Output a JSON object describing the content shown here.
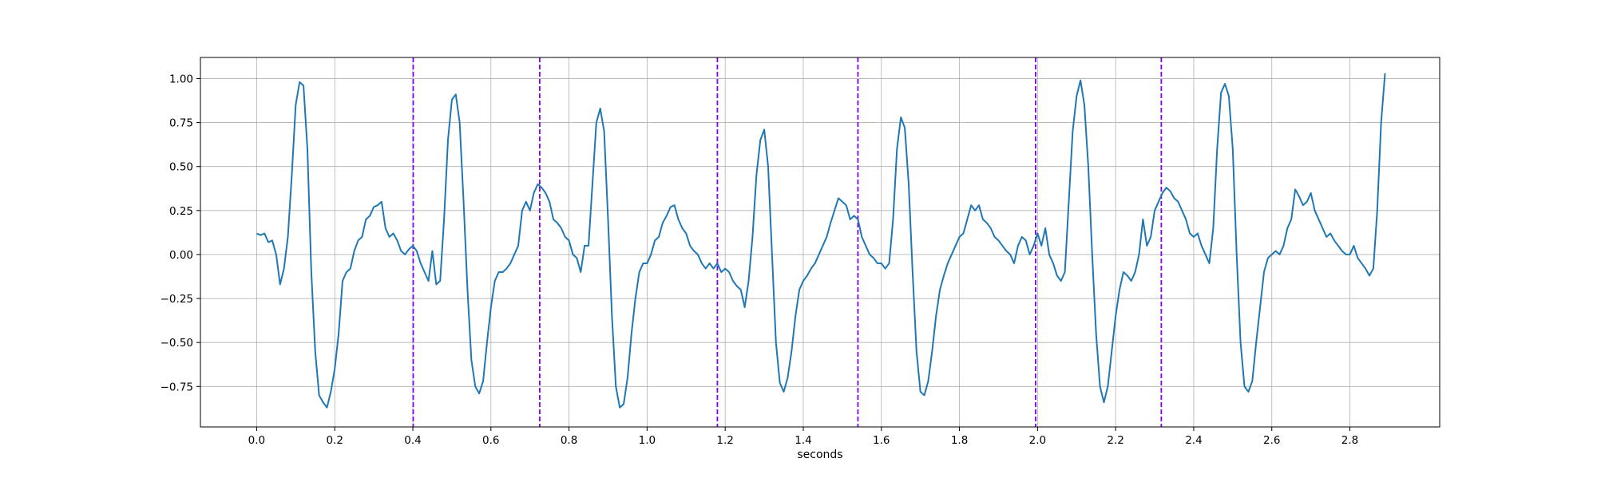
{
  "chart_data": {
    "type": "line",
    "title": "",
    "xlabel": "seconds",
    "ylabel": "",
    "xlim": [
      -0.144,
      3.03
    ],
    "ylim": [
      -0.98,
      1.12
    ],
    "grid": true,
    "x_ticks": [
      0.0,
      0.2,
      0.4,
      0.6,
      0.8,
      1.0,
      1.2,
      1.4,
      1.6,
      1.8,
      2.0,
      2.2,
      2.4,
      2.6,
      2.8
    ],
    "x_tick_labels": [
      "0.0",
      "0.2",
      "0.4",
      "0.6",
      "0.8",
      "1.0",
      "1.2",
      "1.4",
      "1.6",
      "1.8",
      "2.0",
      "2.2",
      "2.4",
      "2.6",
      "2.8"
    ],
    "y_ticks": [
      -0.75,
      -0.5,
      -0.25,
      0.0,
      0.25,
      0.5,
      0.75,
      1.0
    ],
    "y_tick_labels": [
      "−0.75",
      "−0.50",
      "−0.25",
      "0.00",
      "0.25",
      "0.50",
      "0.75",
      "1.00"
    ],
    "series": [
      {
        "color": "#1f77b4",
        "points": [
          [
            0.0,
            0.12
          ],
          [
            0.01,
            0.11
          ],
          [
            0.02,
            0.12
          ],
          [
            0.03,
            0.07
          ],
          [
            0.04,
            0.08
          ],
          [
            0.05,
            0.0
          ],
          [
            0.06,
            -0.17
          ],
          [
            0.07,
            -0.08
          ],
          [
            0.08,
            0.1
          ],
          [
            0.09,
            0.45
          ],
          [
            0.1,
            0.85
          ],
          [
            0.11,
            0.98
          ],
          [
            0.12,
            0.96
          ],
          [
            0.13,
            0.6
          ],
          [
            0.14,
            -0.1
          ],
          [
            0.15,
            -0.55
          ],
          [
            0.16,
            -0.8
          ],
          [
            0.17,
            -0.84
          ],
          [
            0.18,
            -0.87
          ],
          [
            0.19,
            -0.78
          ],
          [
            0.2,
            -0.65
          ],
          [
            0.21,
            -0.45
          ],
          [
            0.22,
            -0.15
          ],
          [
            0.23,
            -0.1
          ],
          [
            0.24,
            -0.08
          ],
          [
            0.25,
            0.02
          ],
          [
            0.26,
            0.08
          ],
          [
            0.27,
            0.1
          ],
          [
            0.28,
            0.2
          ],
          [
            0.29,
            0.22
          ],
          [
            0.3,
            0.27
          ],
          [
            0.31,
            0.28
          ],
          [
            0.32,
            0.3
          ],
          [
            0.33,
            0.15
          ],
          [
            0.34,
            0.1
          ],
          [
            0.35,
            0.12
          ],
          [
            0.36,
            0.08
          ],
          [
            0.37,
            0.02
          ],
          [
            0.38,
            0.0
          ],
          [
            0.39,
            0.03
          ],
          [
            0.4,
            0.05
          ],
          [
            0.41,
            0.02
          ],
          [
            0.42,
            -0.05
          ],
          [
            0.43,
            -0.1
          ],
          [
            0.44,
            -0.15
          ],
          [
            0.45,
            0.02
          ],
          [
            0.46,
            -0.17
          ],
          [
            0.47,
            -0.15
          ],
          [
            0.48,
            0.2
          ],
          [
            0.49,
            0.65
          ],
          [
            0.5,
            0.88
          ],
          [
            0.51,
            0.91
          ],
          [
            0.52,
            0.75
          ],
          [
            0.53,
            0.3
          ],
          [
            0.54,
            -0.2
          ],
          [
            0.55,
            -0.6
          ],
          [
            0.56,
            -0.75
          ],
          [
            0.57,
            -0.79
          ],
          [
            0.58,
            -0.72
          ],
          [
            0.59,
            -0.5
          ],
          [
            0.6,
            -0.3
          ],
          [
            0.61,
            -0.15
          ],
          [
            0.62,
            -0.1
          ],
          [
            0.63,
            -0.1
          ],
          [
            0.64,
            -0.08
          ],
          [
            0.65,
            -0.05
          ],
          [
            0.66,
            0.0
          ],
          [
            0.67,
            0.05
          ],
          [
            0.68,
            0.25
          ],
          [
            0.69,
            0.3
          ],
          [
            0.7,
            0.25
          ],
          [
            0.71,
            0.35
          ],
          [
            0.72,
            0.4
          ],
          [
            0.73,
            0.38
          ],
          [
            0.74,
            0.35
          ],
          [
            0.75,
            0.3
          ],
          [
            0.76,
            0.2
          ],
          [
            0.77,
            0.18
          ],
          [
            0.78,
            0.15
          ],
          [
            0.79,
            0.1
          ],
          [
            0.8,
            0.08
          ],
          [
            0.81,
            0.0
          ],
          [
            0.82,
            -0.02
          ],
          [
            0.83,
            -0.1
          ],
          [
            0.84,
            0.05
          ],
          [
            0.85,
            0.05
          ],
          [
            0.86,
            0.4
          ],
          [
            0.87,
            0.75
          ],
          [
            0.88,
            0.83
          ],
          [
            0.89,
            0.7
          ],
          [
            0.9,
            0.2
          ],
          [
            0.91,
            -0.35
          ],
          [
            0.92,
            -0.75
          ],
          [
            0.93,
            -0.87
          ],
          [
            0.94,
            -0.85
          ],
          [
            0.95,
            -0.7
          ],
          [
            0.96,
            -0.45
          ],
          [
            0.97,
            -0.25
          ],
          [
            0.98,
            -0.1
          ],
          [
            0.99,
            -0.05
          ],
          [
            1.0,
            -0.05
          ],
          [
            1.01,
            0.0
          ],
          [
            1.02,
            0.08
          ],
          [
            1.03,
            0.1
          ],
          [
            1.04,
            0.18
          ],
          [
            1.05,
            0.22
          ],
          [
            1.06,
            0.27
          ],
          [
            1.07,
            0.28
          ],
          [
            1.08,
            0.2
          ],
          [
            1.09,
            0.15
          ],
          [
            1.1,
            0.12
          ],
          [
            1.11,
            0.05
          ],
          [
            1.12,
            0.02
          ],
          [
            1.13,
            0.0
          ],
          [
            1.14,
            -0.05
          ],
          [
            1.15,
            -0.08
          ],
          [
            1.16,
            -0.05
          ],
          [
            1.17,
            -0.08
          ],
          [
            1.18,
            -0.05
          ],
          [
            1.19,
            -0.1
          ],
          [
            1.2,
            -0.08
          ],
          [
            1.21,
            -0.1
          ],
          [
            1.22,
            -0.15
          ],
          [
            1.23,
            -0.18
          ],
          [
            1.24,
            -0.2
          ],
          [
            1.25,
            -0.3
          ],
          [
            1.26,
            -0.15
          ],
          [
            1.27,
            0.1
          ],
          [
            1.28,
            0.45
          ],
          [
            1.29,
            0.65
          ],
          [
            1.3,
            0.71
          ],
          [
            1.31,
            0.5
          ],
          [
            1.32,
            0.0
          ],
          [
            1.33,
            -0.5
          ],
          [
            1.34,
            -0.73
          ],
          [
            1.35,
            -0.78
          ],
          [
            1.36,
            -0.7
          ],
          [
            1.37,
            -0.55
          ],
          [
            1.38,
            -0.35
          ],
          [
            1.39,
            -0.2
          ],
          [
            1.4,
            -0.15
          ],
          [
            1.41,
            -0.12
          ],
          [
            1.42,
            -0.08
          ],
          [
            1.43,
            -0.05
          ],
          [
            1.44,
            0.0
          ],
          [
            1.45,
            0.05
          ],
          [
            1.46,
            0.1
          ],
          [
            1.47,
            0.18
          ],
          [
            1.48,
            0.25
          ],
          [
            1.49,
            0.32
          ],
          [
            1.5,
            0.3
          ],
          [
            1.51,
            0.28
          ],
          [
            1.52,
            0.2
          ],
          [
            1.53,
            0.22
          ],
          [
            1.54,
            0.2
          ],
          [
            1.55,
            0.1
          ],
          [
            1.56,
            0.05
          ],
          [
            1.57,
            0.0
          ],
          [
            1.58,
            -0.02
          ],
          [
            1.59,
            -0.05
          ],
          [
            1.6,
            -0.05
          ],
          [
            1.61,
            -0.08
          ],
          [
            1.62,
            -0.05
          ],
          [
            1.63,
            0.2
          ],
          [
            1.64,
            0.6
          ],
          [
            1.65,
            0.78
          ],
          [
            1.66,
            0.72
          ],
          [
            1.67,
            0.4
          ],
          [
            1.68,
            -0.1
          ],
          [
            1.69,
            -0.55
          ],
          [
            1.7,
            -0.78
          ],
          [
            1.71,
            -0.8
          ],
          [
            1.72,
            -0.72
          ],
          [
            1.73,
            -0.55
          ],
          [
            1.74,
            -0.35
          ],
          [
            1.75,
            -0.2
          ],
          [
            1.76,
            -0.12
          ],
          [
            1.77,
            -0.05
          ],
          [
            1.78,
            0.0
          ],
          [
            1.79,
            0.05
          ],
          [
            1.8,
            0.1
          ],
          [
            1.81,
            0.12
          ],
          [
            1.82,
            0.2
          ],
          [
            1.83,
            0.28
          ],
          [
            1.84,
            0.25
          ],
          [
            1.85,
            0.28
          ],
          [
            1.86,
            0.2
          ],
          [
            1.87,
            0.18
          ],
          [
            1.88,
            0.15
          ],
          [
            1.89,
            0.1
          ],
          [
            1.9,
            0.08
          ],
          [
            1.91,
            0.05
          ],
          [
            1.92,
            0.02
          ],
          [
            1.93,
            0.0
          ],
          [
            1.94,
            -0.05
          ],
          [
            1.95,
            0.05
          ],
          [
            1.96,
            0.1
          ],
          [
            1.97,
            0.08
          ],
          [
            1.98,
            0.0
          ],
          [
            1.99,
            0.05
          ],
          [
            2.0,
            0.12
          ],
          [
            2.01,
            0.05
          ],
          [
            2.02,
            0.15
          ],
          [
            2.03,
            0.0
          ],
          [
            2.04,
            -0.05
          ],
          [
            2.05,
            -0.12
          ],
          [
            2.06,
            -0.15
          ],
          [
            2.07,
            -0.1
          ],
          [
            2.08,
            0.3
          ],
          [
            2.09,
            0.7
          ],
          [
            2.1,
            0.9
          ],
          [
            2.11,
            0.99
          ],
          [
            2.12,
            0.85
          ],
          [
            2.13,
            0.5
          ],
          [
            2.14,
            0.0
          ],
          [
            2.15,
            -0.45
          ],
          [
            2.16,
            -0.75
          ],
          [
            2.17,
            -0.84
          ],
          [
            2.18,
            -0.75
          ],
          [
            2.19,
            -0.55
          ],
          [
            2.2,
            -0.35
          ],
          [
            2.21,
            -0.2
          ],
          [
            2.22,
            -0.1
          ],
          [
            2.23,
            -0.12
          ],
          [
            2.24,
            -0.15
          ],
          [
            2.25,
            -0.1
          ],
          [
            2.26,
            0.0
          ],
          [
            2.27,
            0.2
          ],
          [
            2.28,
            0.05
          ],
          [
            2.29,
            0.1
          ],
          [
            2.3,
            0.25
          ],
          [
            2.31,
            0.3
          ],
          [
            2.32,
            0.35
          ],
          [
            2.33,
            0.38
          ],
          [
            2.34,
            0.36
          ],
          [
            2.35,
            0.32
          ],
          [
            2.36,
            0.3
          ],
          [
            2.37,
            0.25
          ],
          [
            2.38,
            0.2
          ],
          [
            2.39,
            0.12
          ],
          [
            2.4,
            0.1
          ],
          [
            2.41,
            0.12
          ],
          [
            2.42,
            0.05
          ],
          [
            2.43,
            0.0
          ],
          [
            2.44,
            -0.05
          ],
          [
            2.45,
            0.15
          ],
          [
            2.46,
            0.6
          ],
          [
            2.47,
            0.92
          ],
          [
            2.48,
            0.97
          ],
          [
            2.49,
            0.9
          ],
          [
            2.5,
            0.6
          ],
          [
            2.51,
            0.0
          ],
          [
            2.52,
            -0.5
          ],
          [
            2.53,
            -0.75
          ],
          [
            2.54,
            -0.78
          ],
          [
            2.55,
            -0.72
          ],
          [
            2.56,
            -0.5
          ],
          [
            2.57,
            -0.3
          ],
          [
            2.58,
            -0.1
          ],
          [
            2.59,
            -0.02
          ],
          [
            2.6,
            0.0
          ],
          [
            2.61,
            0.02
          ],
          [
            2.62,
            0.0
          ],
          [
            2.63,
            0.05
          ],
          [
            2.64,
            0.15
          ],
          [
            2.65,
            0.2
          ],
          [
            2.66,
            0.37
          ],
          [
            2.67,
            0.33
          ],
          [
            2.68,
            0.28
          ],
          [
            2.69,
            0.3
          ],
          [
            2.7,
            0.35
          ],
          [
            2.71,
            0.25
          ],
          [
            2.72,
            0.2
          ],
          [
            2.73,
            0.15
          ],
          [
            2.74,
            0.1
          ],
          [
            2.75,
            0.12
          ],
          [
            2.76,
            0.08
          ],
          [
            2.77,
            0.05
          ],
          [
            2.78,
            0.02
          ],
          [
            2.79,
            0.0
          ],
          [
            2.8,
            0.0
          ],
          [
            2.81,
            0.05
          ],
          [
            2.82,
            -0.02
          ],
          [
            2.83,
            -0.05
          ],
          [
            2.84,
            -0.08
          ],
          [
            2.85,
            -0.12
          ],
          [
            2.86,
            -0.08
          ],
          [
            2.87,
            0.25
          ],
          [
            2.88,
            0.75
          ],
          [
            2.89,
            1.03
          ]
        ]
      }
    ],
    "vertical_lines": {
      "x": [
        0.401,
        0.725,
        1.18,
        1.54,
        1.995,
        2.317
      ],
      "color": "#8000ff",
      "style": "dashed"
    }
  }
}
